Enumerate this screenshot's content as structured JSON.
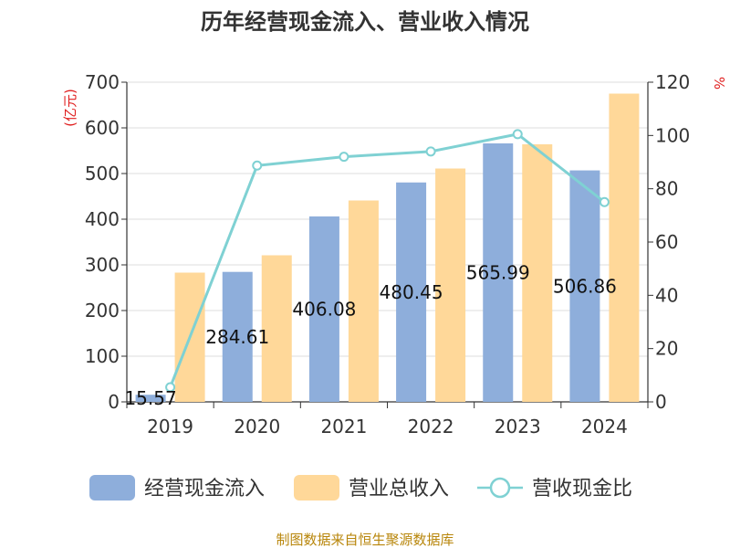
{
  "chart_data": {
    "type": "bar",
    "title": "历年经营现金流入、营业收入情况",
    "categories": [
      "2019",
      "2020",
      "2021",
      "2022",
      "2023",
      "2024"
    ],
    "series": [
      {
        "name": "经营现金流入",
        "type": "bar",
        "axis": "left",
        "color": "#8eaedb",
        "values": [
          15.57,
          284.61,
          406.08,
          480.45,
          565.99,
          506.86
        ],
        "labels": [
          "15.57",
          "284.61",
          "406.08",
          "480.45",
          "565.99",
          "506.86"
        ]
      },
      {
        "name": "营业总收入",
        "type": "bar",
        "axis": "left",
        "color": "#ffd899",
        "values": [
          283,
          321,
          441,
          511,
          564,
          675
        ]
      },
      {
        "name": "营收现金比",
        "type": "line",
        "axis": "right",
        "color": "#7fd1d3",
        "values": [
          5.5,
          88.7,
          92.0,
          94.0,
          100.5,
          75.0
        ]
      }
    ],
    "left_axis": {
      "unit": "(亿元)",
      "min": 0,
      "max": 700,
      "ticks": [
        "0",
        "100",
        "200",
        "300",
        "400",
        "500",
        "600",
        "700"
      ]
    },
    "right_axis": {
      "unit": "%",
      "min": 0,
      "max": 120,
      "ticks": [
        "0",
        "20",
        "40",
        "60",
        "80",
        "100",
        "120"
      ]
    },
    "grid": true,
    "legend_position": "bottom"
  },
  "footer": {
    "source": "制图数据来自恒生聚源数据库"
  }
}
